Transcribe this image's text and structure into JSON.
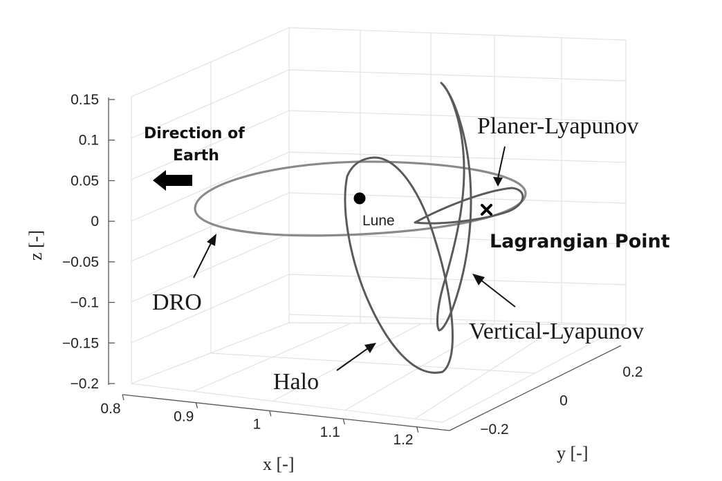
{
  "chart_data": {
    "type": "line-3d",
    "xlabel": "x [-]",
    "ylabel": "y [-]",
    "zlabel": "z [-]",
    "x_ticks": [
      "0.8",
      "0.9",
      "1",
      "1.1",
      "1.2"
    ],
    "y_ticks": [
      "−0.2",
      "0",
      "0.2"
    ],
    "z_ticks": [
      "0.15",
      "0.1",
      "0.05",
      "0",
      "−0.05",
      "−0.1",
      "−0.15",
      "−0.2"
    ],
    "xlim": [
      0.8,
      1.2
    ],
    "ylim": [
      -0.2,
      0.2
    ],
    "zlim": [
      -0.2,
      0.15
    ],
    "grid": true,
    "series": [
      {
        "name": "DRO",
        "color": "#8a8a8a"
      },
      {
        "name": "Halo",
        "color": "#5a5a5a"
      },
      {
        "name": "Vertical-Lyapunov",
        "color": "#5a5a5a"
      },
      {
        "name": "Planer-Lyapunov",
        "color": "#5a5a5a"
      }
    ],
    "points": [
      {
        "name": "Lune",
        "marker": "dot"
      },
      {
        "name": "Lagrangian Point",
        "marker": "x"
      }
    ],
    "annotations": {
      "direction": "Direction of\nEarth",
      "direction_line1": "Direction of",
      "direction_line2": "Earth",
      "moon": "Lune",
      "lagrange": "Lagrangian Point",
      "dro": "DRO",
      "halo": "Halo",
      "vertical": "Vertical-Lyapunov",
      "planer": "Planer-Lyapunov"
    }
  }
}
